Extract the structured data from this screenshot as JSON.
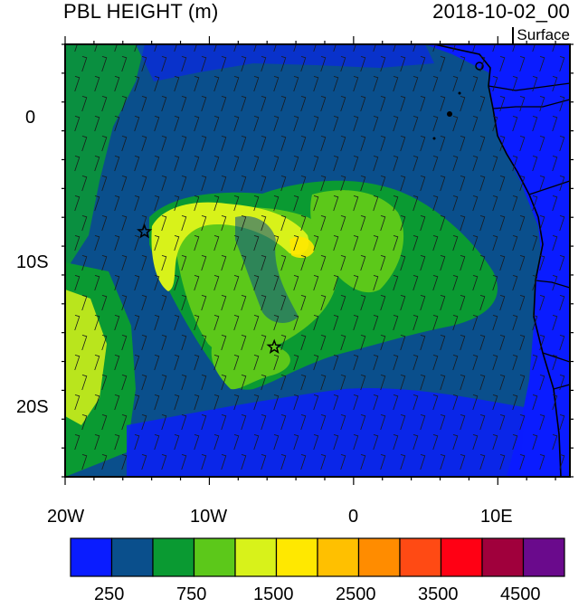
{
  "header": {
    "title": "PBL HEIGHT (m)",
    "datetime": "2018-10-02_00",
    "level": "Surface"
  },
  "map": {
    "lon_range": [
      -20,
      15
    ],
    "lat_range": [
      -25,
      5
    ],
    "lon_labels": [
      "20W",
      "10W",
      "0",
      "10E"
    ],
    "lat_labels": [
      "0",
      "10S",
      "20S"
    ],
    "markers": [
      {
        "name": "star-marker-west",
        "lon": -14.5,
        "lat": -8
      },
      {
        "name": "star-marker-south",
        "lon": -5.5,
        "lat": -16
      }
    ],
    "field": "PBL height",
    "overlay": "wind barbs"
  },
  "colorbar": {
    "colors": [
      "#0a1cff",
      "#0a4f8c",
      "#0a9a32",
      "#5cc81a",
      "#d8f21a",
      "#ffe800",
      "#ffc000",
      "#ff8c00",
      "#ff4a14",
      "#ff0014",
      "#a0003c",
      "#6a0a8c"
    ],
    "labels": [
      "250",
      "750",
      "1500",
      "2500",
      "3500",
      "4500"
    ]
  }
}
